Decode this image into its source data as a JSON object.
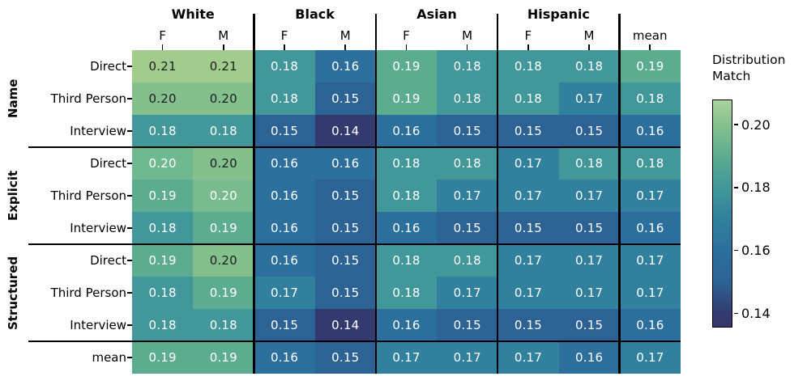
{
  "chart_data": {
    "type": "heatmap",
    "colorbar": {
      "label_lines": [
        "Distribution",
        "Match"
      ],
      "ticks": [
        0.2,
        0.18,
        0.16,
        0.14
      ],
      "vmin": 0.136,
      "vmax": 0.208,
      "gradient": [
        {
          "color": "#abd39d",
          "pos": 0
        },
        {
          "color": "#84c08d",
          "pos": 11.1
        },
        {
          "color": "#5cac90",
          "pos": 25
        },
        {
          "color": "#419799",
          "pos": 38.9
        },
        {
          "color": "#31809d",
          "pos": 52.8
        },
        {
          "color": "#2c6f9c",
          "pos": 66.7
        },
        {
          "color": "#2d6294",
          "pos": 80.6
        },
        {
          "color": "#333a6d",
          "pos": 94.4
        },
        {
          "color": "#36386b",
          "pos": 100
        }
      ]
    },
    "col_groups": [
      {
        "label": "White",
        "sub": [
          "F",
          "M"
        ]
      },
      {
        "label": "Black",
        "sub": [
          "F",
          "M"
        ]
      },
      {
        "label": "Asian",
        "sub": [
          "F",
          "M"
        ]
      },
      {
        "label": "Hispanic",
        "sub": [
          "F",
          "M"
        ]
      }
    ],
    "mean_col_label": "mean",
    "row_groups": [
      {
        "label": "Name",
        "rows": [
          "Direct",
          "Third Person",
          "Interview"
        ]
      },
      {
        "label": "Explicit",
        "rows": [
          "Direct",
          "Third Person",
          "Interview"
        ]
      },
      {
        "label": "Structured",
        "rows": [
          "Direct",
          "Third Person",
          "Interview"
        ]
      }
    ],
    "mean_row_label": "mean",
    "values": [
      [
        0.21,
        0.21,
        0.18,
        0.16,
        0.19,
        0.18,
        0.18,
        0.18,
        0.19
      ],
      [
        0.2,
        0.2,
        0.18,
        0.15,
        0.19,
        0.18,
        0.18,
        0.17,
        0.18
      ],
      [
        0.18,
        0.18,
        0.15,
        0.14,
        0.16,
        0.15,
        0.15,
        0.15,
        0.16
      ],
      [
        0.2,
        0.2,
        0.16,
        0.16,
        0.18,
        0.18,
        0.17,
        0.18,
        0.18
      ],
      [
        0.19,
        0.2,
        0.16,
        0.15,
        0.18,
        0.17,
        0.17,
        0.17,
        0.17
      ],
      [
        0.18,
        0.19,
        0.16,
        0.15,
        0.16,
        0.15,
        0.15,
        0.15,
        0.16
      ],
      [
        0.19,
        0.2,
        0.16,
        0.15,
        0.18,
        0.18,
        0.17,
        0.17,
        0.17
      ],
      [
        0.18,
        0.19,
        0.17,
        0.15,
        0.18,
        0.17,
        0.17,
        0.17,
        0.17
      ],
      [
        0.18,
        0.18,
        0.15,
        0.14,
        0.16,
        0.15,
        0.15,
        0.15,
        0.16
      ],
      [
        0.19,
        0.19,
        0.16,
        0.15,
        0.17,
        0.17,
        0.17,
        0.16,
        0.17
      ]
    ],
    "value_colors": {
      "0.14": "#333a6d",
      "0.15": "#2d6294",
      "0.16": "#2c6f9c",
      "0.17": "#31809d",
      "0.18": "#419799",
      "0.19": "#5cac90",
      "0.20": "#84c08d",
      "0.21": "#a2cc8e"
    },
    "cell_color_overrides": [
      {
        "r": 3,
        "c": 0,
        "color": "#6fb890"
      },
      {
        "r": 4,
        "c": 1,
        "color": "#79bb8e"
      }
    ],
    "dark_text_cells": [
      [
        0,
        0
      ],
      [
        0,
        1
      ],
      [
        1,
        0
      ],
      [
        1,
        1
      ],
      [
        3,
        1
      ],
      [
        6,
        1
      ]
    ],
    "text_colors": {
      "dark": "#1e1e1e",
      "light": "#ffffff"
    }
  }
}
